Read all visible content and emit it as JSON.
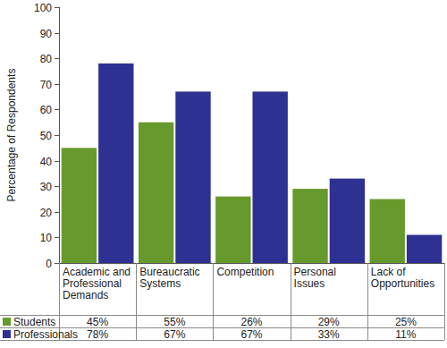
{
  "chart_data": {
    "type": "bar",
    "y_label": "Percentage of Respondents",
    "categories": [
      "Academic and Professional Demands",
      "Bureaucratic Systems",
      "Competition",
      "Personal Issues",
      "Lack of Opportunities"
    ],
    "series": [
      {
        "name": "Students",
        "color": "#679a2c",
        "values": [
          45,
          55,
          26,
          29,
          25
        ],
        "value_labels": [
          "45%",
          "55%",
          "26%",
          "29%",
          "25%"
        ]
      },
      {
        "name": "Professionals",
        "color": "#2e3192",
        "values": [
          78,
          67,
          67,
          33,
          11
        ],
        "value_labels": [
          "78%",
          "67%",
          "67%",
          "33%",
          "11%"
        ]
      }
    ],
    "ylim": [
      0,
      100
    ],
    "yticks": [
      0,
      10,
      20,
      30,
      40,
      50,
      60,
      70,
      80,
      90,
      100
    ],
    "grid": false
  }
}
